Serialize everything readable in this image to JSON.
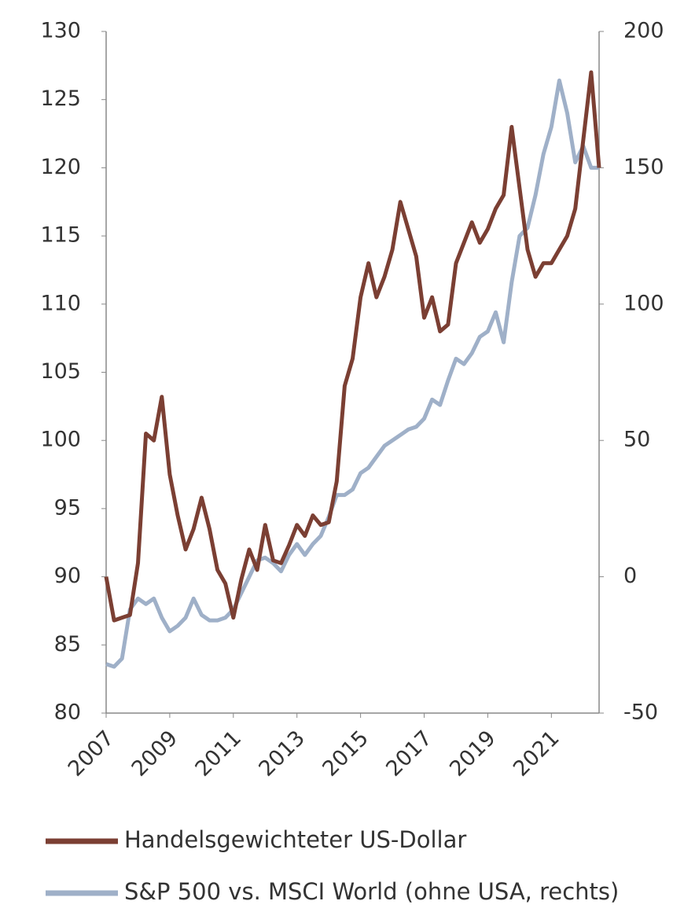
{
  "chart_data": {
    "type": "line",
    "x": [
      2007.0,
      2007.25,
      2007.5,
      2007.75,
      2008.0,
      2008.25,
      2008.5,
      2008.75,
      2009.0,
      2009.25,
      2009.5,
      2009.75,
      2010.0,
      2010.25,
      2010.5,
      2010.75,
      2011.0,
      2011.25,
      2011.5,
      2011.75,
      2012.0,
      2012.25,
      2012.5,
      2012.75,
      2013.0,
      2013.25,
      2013.5,
      2013.75,
      2014.0,
      2014.25,
      2014.5,
      2014.75,
      2015.0,
      2015.25,
      2015.5,
      2015.75,
      2016.0,
      2016.25,
      2016.5,
      2016.75,
      2017.0,
      2017.25,
      2017.5,
      2017.75,
      2018.0,
      2018.25,
      2018.5,
      2018.75,
      2019.0,
      2019.25,
      2019.5,
      2019.75,
      2020.0,
      2020.25,
      2020.5,
      2020.75,
      2021.0,
      2021.25,
      2021.5,
      2021.75,
      2022.0,
      2022.25,
      2022.5
    ],
    "series": [
      {
        "name": "Handelsgewichteter US-Dollar",
        "color": "#7b3f33",
        "axis": "y",
        "values": [
          90,
          86.8,
          87,
          87.2,
          91,
          100.5,
          100,
          103.2,
          97.5,
          94.5,
          92,
          93.5,
          95.8,
          93.5,
          90.5,
          89.5,
          87,
          89.8,
          92,
          90.5,
          93.8,
          91.2,
          91,
          92.3,
          93.8,
          93,
          94.5,
          93.8,
          94,
          97,
          104,
          106,
          110.5,
          113,
          110.5,
          112,
          114,
          117.5,
          115.5,
          113.5,
          109,
          110.5,
          108,
          108.5,
          113,
          114.5,
          116,
          114.5,
          115.5,
          117,
          118,
          123,
          118.5,
          114,
          112,
          113,
          113,
          114,
          115,
          117,
          122,
          127,
          120
        ]
      },
      {
        "name": "S&P 500 vs. MSCI World (ohne USA, rechts)",
        "color": "#9fb0c8",
        "axis": "y2",
        "values": [
          -32,
          -33,
          -30,
          -12,
          -8,
          -10,
          -8,
          -15,
          -20,
          -18,
          -15,
          -8,
          -14,
          -16,
          -16,
          -15,
          -12,
          -6,
          0,
          6,
          7,
          5,
          2,
          8,
          12,
          8,
          12,
          15,
          22,
          30,
          30,
          32,
          38,
          40,
          44,
          48,
          50,
          52,
          54,
          55,
          58,
          65,
          63,
          72,
          80,
          78,
          82,
          88,
          90,
          97,
          86,
          108,
          125,
          128,
          140,
          155,
          165,
          182,
          170,
          152,
          158,
          150,
          150
        ]
      }
    ],
    "xlim": [
      2007,
      2022.5
    ],
    "xticks": [
      2007,
      2009,
      2011,
      2013,
      2015,
      2017,
      2019,
      2021
    ],
    "ylim": [
      80,
      130
    ],
    "yticks": [
      80,
      85,
      90,
      95,
      100,
      105,
      110,
      115,
      120,
      125,
      130
    ],
    "y2lim": [
      -50,
      200
    ],
    "y2ticks": [
      -50,
      0,
      50,
      100,
      150,
      200
    ]
  }
}
